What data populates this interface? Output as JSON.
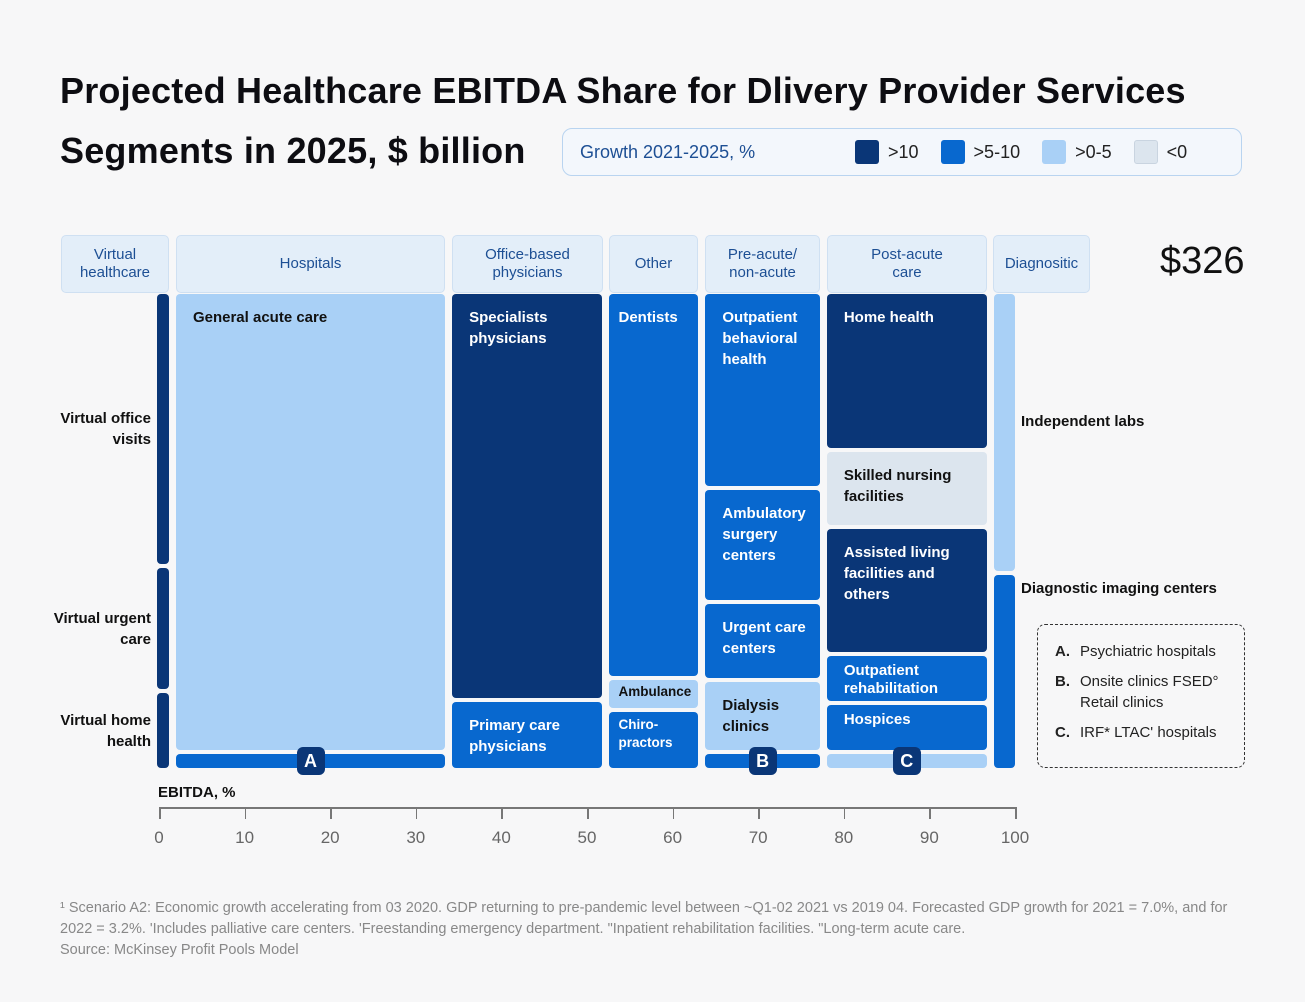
{
  "title_line1": "Projected Healthcare EBITDA Share for Dlivery Provider Services",
  "title_line2": "Segments in 2025, $ billion",
  "total": "$326",
  "legend": {
    "title": "Growth 2021-2025, %",
    "items": [
      {
        "label": ">10",
        "color": "#0a3677"
      },
      {
        "label": ">5-10",
        "color": "#0868cf"
      },
      {
        "label": ">0-5",
        "color": "#a9d0f6"
      },
      {
        "label": "<0",
        "color": "#dce5ee"
      }
    ]
  },
  "chart_data": {
    "type": "marimekko",
    "xlabel": "EBITDA, %",
    "xlim": [
      0,
      100
    ],
    "xticks": [
      "0",
      "10",
      "20",
      "30",
      "40",
      "50",
      "60",
      "70",
      "80",
      "90",
      "100"
    ],
    "columns": [
      {
        "name": "Virtual healthcare",
        "width": 1.4,
        "segments": [
          {
            "label": "Virtual office visits",
            "share": 58,
            "growth": ">10"
          },
          {
            "label": "Virtual urgent care",
            "share": 26,
            "growth": ">10"
          },
          {
            "label": "Virtual home health",
            "share": 16,
            "growth": ">10"
          }
        ]
      },
      {
        "name": "Hospitals",
        "width": 31.5,
        "segments": [
          {
            "label": "General acute care",
            "share": 97,
            "growth": ">0-5"
          },
          {
            "label": "",
            "badge": "A",
            "share": 3,
            "growth": ">5-10"
          }
        ]
      },
      {
        "name": "Office-based physicians",
        "width": 17.6,
        "segments": [
          {
            "label": "Specialists physicians",
            "share": 86,
            "growth": ">10"
          },
          {
            "label": "Primary care physicians",
            "share": 14,
            "growth": ">5-10"
          }
        ]
      },
      {
        "name": "Other",
        "width": 10.4,
        "segments": [
          {
            "label": "Dentists",
            "share": 82,
            "growth": ">5-10"
          },
          {
            "label": "Ambulance",
            "share": 6,
            "growth": ">0-5"
          },
          {
            "label": "Chiro-practors",
            "share": 12,
            "growth": ">5-10"
          }
        ]
      },
      {
        "name": "Pre-acute/ non-acute",
        "width": 13.4,
        "segments": [
          {
            "label": "Outpatient behavioral health",
            "share": 42,
            "growth": ">5-10"
          },
          {
            "label": "Ambulatory surgery centers",
            "share": 24,
            "growth": ">5-10"
          },
          {
            "label": "Urgent care centers",
            "share": 16,
            "growth": ">5-10"
          },
          {
            "label": "Dialysis clinics",
            "share": 15,
            "growth": ">0-5"
          },
          {
            "label": "",
            "badge": "B",
            "share": 3,
            "growth": ">5-10"
          }
        ]
      },
      {
        "name": "Post-acute care",
        "width": 18.7,
        "segments": [
          {
            "label": "Home health",
            "share": 34,
            "growth": ">10"
          },
          {
            "label": "Skilled nursing facilities",
            "share": 16,
            "growth": "<0"
          },
          {
            "label": "Assisted living facilities and others",
            "share": 27,
            "growth": ">10"
          },
          {
            "label": "Outpatient rehabilitation",
            "share": 10,
            "growth": ">5-10"
          },
          {
            "label": "Hospices",
            "share": 10,
            "growth": ">5-10"
          },
          {
            "label": "",
            "badge": "C",
            "share": 3,
            "growth": ">0-5"
          }
        ]
      },
      {
        "name": "Diagnositic",
        "width": 2.5,
        "segments": [
          {
            "label": "Independent labs",
            "share": 59,
            "growth": ">0-5"
          },
          {
            "label": "Diagnostic imaging centers",
            "share": 41,
            "growth": ">5-10"
          }
        ]
      }
    ]
  },
  "key": [
    {
      "letter": "A.",
      "text": "Psychiatric hospitals"
    },
    {
      "letter": "B.",
      "text": "Onsite clinics FSED° Retail clinics"
    },
    {
      "letter": "C.",
      "text": "IRF* LTAC' hospitals"
    }
  ],
  "footnote": {
    "line1": "¹ Scenario A2: Economic growth accelerating from 03 2020. GDP returning to pre-pandemic level between ~Q1-02 2021 vs 2019 04. Forecasted GDP growth for 2021 = 7.0%, and for 2022 = 3.2%. 'Includes palliative care centers. 'Freestanding emergency department. \"Inpatient rehabilitation facilities. \"Long-term acute care.",
    "source": "Source: McKinsey Profit Pools Model"
  }
}
